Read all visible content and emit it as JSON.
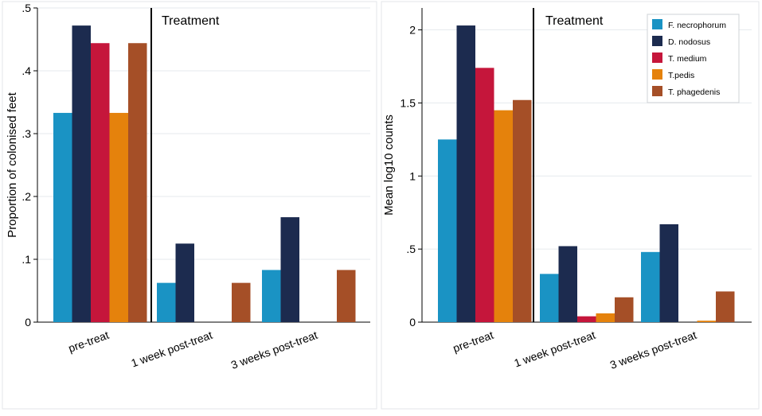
{
  "colors": {
    "F. necrophorum": "#1a93c4",
    "D. nodosus": "#1c2b4f",
    "T. medium": "#c5163b",
    "T.pedis": "#e5820c",
    "T. phagedenis": "#a54f27",
    "grid": "#e6eaee",
    "panel_border": "#e3e6ea"
  },
  "chart_data": [
    {
      "type": "bar",
      "ylabel": "Proportion of colonised feet",
      "annotation": "Treatment",
      "categories": [
        "pre-treat",
        "1 week post-treat",
        "3 weeks post-treat"
      ],
      "ylim": [
        0,
        0.5
      ],
      "yticks": [
        0,
        0.1,
        0.2,
        0.3,
        0.4,
        0.5
      ],
      "yticklabels": [
        "0",
        ".1",
        ".2",
        ".3",
        ".4",
        ".5"
      ],
      "grid": true,
      "legend": null,
      "series": [
        {
          "name": "F. necrophorum",
          "values": [
            0.333,
            0.0625,
            0.083
          ]
        },
        {
          "name": "D. nodosus",
          "values": [
            0.472,
            0.125,
            0.167
          ]
        },
        {
          "name": "T. medium",
          "values": [
            0.444,
            0,
            0
          ]
        },
        {
          "name": "T.pedis",
          "values": [
            0.333,
            0,
            0
          ]
        },
        {
          "name": "T. phagedenis",
          "values": [
            0.444,
            0.0625,
            0.083
          ]
        }
      ]
    },
    {
      "type": "bar",
      "ylabel": "Mean log10 counts",
      "annotation": "Treatment",
      "categories": [
        "pre-treat",
        "1 week post-treat",
        "3 weeks post-treat"
      ],
      "ylim": [
        0,
        2.15
      ],
      "yticks": [
        0,
        0.5,
        1,
        1.5,
        2
      ],
      "yticklabels": [
        "0",
        ".5",
        "1",
        "1.5",
        "2"
      ],
      "grid": true,
      "legend": "top-right",
      "series": [
        {
          "name": "F. necrophorum",
          "values": [
            1.25,
            0.33,
            0.48
          ]
        },
        {
          "name": "D. nodosus",
          "values": [
            2.03,
            0.52,
            0.67
          ]
        },
        {
          "name": "T. medium",
          "values": [
            1.74,
            0.04,
            0
          ]
        },
        {
          "name": "T.pedis",
          "values": [
            1.45,
            0.06,
            0.01
          ]
        },
        {
          "name": "T. phagedenis",
          "values": [
            1.52,
            0.17,
            0.21
          ]
        }
      ]
    }
  ]
}
